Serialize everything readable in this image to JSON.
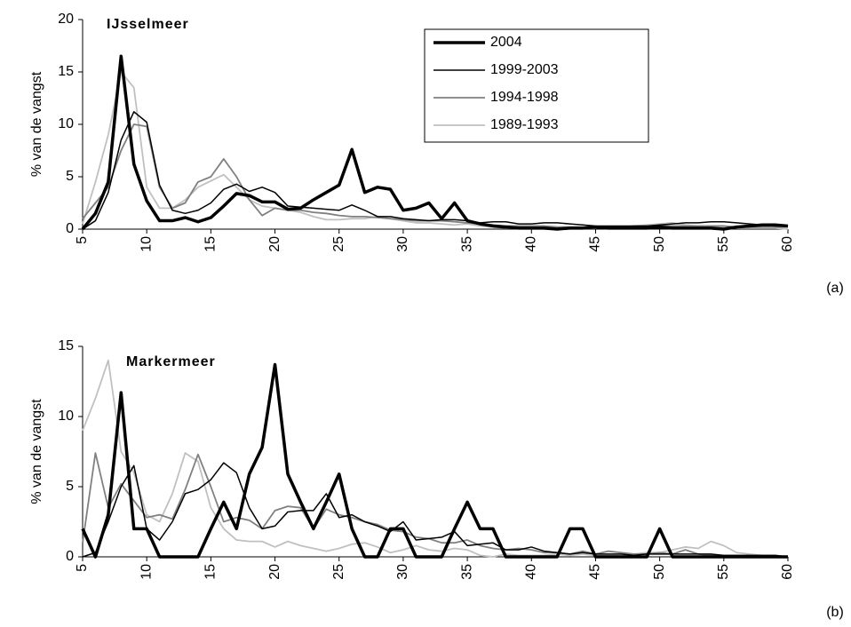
{
  "chart_data": [
    {
      "type": "line",
      "title": "IJsselmeer",
      "label": "(a)",
      "y_label": "% van de vangst",
      "x": [
        5,
        6,
        7,
        8,
        9,
        10,
        11,
        12,
        13,
        14,
        15,
        16,
        17,
        18,
        19,
        20,
        21,
        22,
        23,
        24,
        25,
        26,
        27,
        28,
        29,
        30,
        31,
        32,
        33,
        34,
        35,
        36,
        37,
        38,
        39,
        40,
        41,
        42,
        43,
        44,
        45,
        46,
        47,
        48,
        49,
        50,
        51,
        52,
        53,
        54,
        55,
        56,
        57,
        58,
        59,
        60
      ],
      "xlim": [
        5,
        60
      ],
      "xticks": [
        5,
        10,
        15,
        20,
        25,
        30,
        35,
        40,
        45,
        50,
        55,
        60
      ],
      "ylim": [
        0,
        20
      ],
      "yticks": [
        0,
        5,
        10,
        15,
        20
      ],
      "legend": "upper right",
      "series": [
        {
          "name": "2004",
          "color": "#000000",
          "width": 3.5,
          "values": [
            0,
            1.5,
            4.5,
            16.5,
            6.2,
            2.7,
            0.8,
            0.8,
            1.1,
            0.7,
            1.1,
            2.2,
            3.4,
            3.2,
            2.6,
            2.6,
            1.9,
            2.0,
            2.8,
            3.5,
            4.2,
            7.6,
            3.5,
            4.0,
            3.8,
            1.8,
            2.0,
            2.5,
            1.0,
            2.5,
            0.8,
            0.5,
            0.3,
            0.2,
            0.1,
            0.1,
            0.1,
            0,
            0.1,
            0.1,
            0.2,
            0.1,
            0.1,
            0.1,
            0.1,
            0.2,
            0.1,
            0.1,
            0.1,
            0.1,
            0,
            0.2,
            0.3,
            0.4,
            0.4,
            0.3
          ]
        },
        {
          "name": "1999-2003",
          "color": "#000000",
          "width": 1.5,
          "values": [
            0,
            0.8,
            3.5,
            8.5,
            11.2,
            10.2,
            4.2,
            1.8,
            1.5,
            1.8,
            2.5,
            3.8,
            4.3,
            3.6,
            4.0,
            3.5,
            2.2,
            2.1,
            2.0,
            1.9,
            1.8,
            2.3,
            1.8,
            1.2,
            1.2,
            1.0,
            0.9,
            0.8,
            0.9,
            0.9,
            0.8,
            0.6,
            0.7,
            0.7,
            0.5,
            0.5,
            0.6,
            0.6,
            0.5,
            0.4,
            0.3,
            0.3,
            0.3,
            0.3,
            0.3,
            0.4,
            0.5,
            0.6,
            0.6,
            0.7,
            0.7,
            0.6,
            0.5,
            0.4,
            0.3,
            0.3
          ]
        },
        {
          "name": "1994-1998",
          "color": "#808080",
          "width": 1.8,
          "values": [
            1.0,
            2.5,
            4.0,
            7.5,
            10.0,
            9.8,
            4.0,
            2.0,
            2.5,
            4.5,
            5.0,
            6.7,
            5.0,
            2.8,
            1.3,
            2.0,
            1.8,
            1.8,
            1.6,
            1.5,
            1.3,
            1.2,
            1.2,
            1.1,
            1.0,
            0.9,
            0.8,
            0.8,
            0.8,
            0.7,
            0.6,
            0.5,
            0.4,
            0.3,
            0.3,
            0.3,
            0.3,
            0.2,
            0.2,
            0.2,
            0.2,
            0.2,
            0.2,
            0.3,
            0.3,
            0.3,
            0.3,
            0.3,
            0.3,
            0.3,
            0.3,
            0.2,
            0.2,
            0.2,
            0.2,
            0.2
          ]
        },
        {
          "name": "1989-1993",
          "color": "#c0c0c0",
          "width": 1.8,
          "values": [
            0.5,
            4.5,
            9.0,
            15.0,
            13.5,
            4.0,
            2.0,
            2.0,
            2.8,
            4.0,
            4.6,
            5.2,
            4.0,
            2.8,
            2.2,
            2.0,
            1.8,
            1.6,
            1.2,
            0.9,
            0.9,
            1.0,
            1.0,
            1.2,
            1.0,
            0.8,
            0.6,
            0.6,
            0.5,
            0.4,
            0.5,
            0.3,
            0.2,
            0.1,
            0.1,
            0.1,
            0.1,
            0.1,
            0.1,
            0.1,
            0.1,
            0.2,
            0.2,
            0.3,
            0.4,
            0.5,
            0.6,
            0.4,
            0.3,
            0.2,
            0.2,
            0.1,
            0.1,
            0.1,
            0.1,
            0
          ]
        }
      ]
    },
    {
      "type": "line",
      "title": "Markermeer",
      "label": "(b)",
      "y_label": "% van de vangst",
      "x": [
        5,
        6,
        7,
        8,
        9,
        10,
        11,
        12,
        13,
        14,
        15,
        16,
        17,
        18,
        19,
        20,
        21,
        22,
        23,
        24,
        25,
        26,
        27,
        28,
        29,
        30,
        31,
        32,
        33,
        34,
        35,
        36,
        37,
        38,
        39,
        40,
        41,
        42,
        43,
        44,
        45,
        46,
        47,
        48,
        49,
        50,
        51,
        52,
        53,
        54,
        55,
        56,
        57,
        58,
        59,
        60
      ],
      "xlim": [
        5,
        60
      ],
      "xticks": [
        5,
        10,
        15,
        20,
        25,
        30,
        35,
        40,
        45,
        50,
        55,
        60
      ],
      "ylim": [
        0,
        15
      ],
      "yticks": [
        0,
        5,
        10,
        15
      ],
      "series": [
        {
          "color": "#000000",
          "width": 3.5,
          "values": [
            2,
            0,
            3,
            11.7,
            2,
            2,
            0,
            0,
            0,
            0,
            2,
            3.9,
            2,
            5.9,
            7.8,
            13.7,
            5.9,
            3.9,
            2,
            3.9,
            5.9,
            2,
            0,
            0,
            2,
            2,
            0,
            0,
            0,
            2,
            3.9,
            2,
            2,
            0,
            0,
            0,
            0,
            0,
            2,
            2,
            0,
            0,
            0,
            0,
            0,
            2,
            0,
            0,
            0,
            0,
            0,
            0,
            0,
            0,
            0,
            0
          ]
        },
        {
          "color": "#000000",
          "width": 1.5,
          "values": [
            0,
            0.3,
            2.5,
            5.0,
            6.5,
            2.0,
            1.2,
            2.5,
            4.5,
            4.8,
            5.5,
            6.7,
            6.0,
            3.5,
            2.0,
            2.2,
            3.2,
            3.3,
            3.3,
            4.5,
            2.8,
            3.0,
            2.5,
            2.2,
            1.8,
            2.5,
            1.2,
            1.3,
            1.4,
            1.8,
            0.8,
            0.9,
            1.0,
            0.5,
            0.5,
            0.7,
            0.4,
            0.3,
            0.2,
            0.3,
            0.2,
            0.2,
            0.2,
            0.1,
            0.2,
            0.2,
            0.2,
            0.2,
            0.2,
            0.2,
            0.1,
            0.1,
            0.1,
            0.1,
            0.1,
            0
          ]
        },
        {
          "color": "#808080",
          "width": 1.8,
          "values": [
            1.0,
            7.4,
            3.5,
            5.2,
            4.0,
            2.8,
            3.0,
            2.7,
            4.8,
            7.3,
            5.0,
            2.5,
            2.8,
            2.6,
            2.0,
            3.3,
            3.6,
            3.5,
            2.0,
            3.4,
            3.0,
            2.8,
            2.5,
            2.3,
            1.9,
            1.8,
            1.4,
            1.3,
            1.0,
            1.0,
            1.2,
            0.8,
            0.6,
            0.5,
            0.6,
            0.5,
            0.3,
            0.3,
            0.2,
            0.4,
            0.2,
            0.4,
            0.3,
            0.2,
            0.2,
            0.3,
            0.2,
            0.5,
            0.2,
            0.1,
            0.1,
            0.1,
            0.1,
            0.1,
            0.1,
            0
          ]
        },
        {
          "color": "#c0c0c0",
          "width": 1.8,
          "values": [
            9.0,
            11.3,
            14.0,
            7.5,
            6.0,
            3.0,
            2.5,
            4.5,
            7.4,
            6.8,
            3.5,
            2.0,
            1.2,
            1.1,
            1.1,
            0.7,
            1.1,
            0.8,
            0.6,
            0.4,
            0.6,
            0.9,
            1.0,
            0.7,
            0.3,
            0.5,
            0.8,
            0.5,
            0.4,
            0.6,
            0.5,
            0.1,
            0,
            0.2,
            0.1,
            0.1,
            0.1,
            0.2,
            0.1,
            0.2,
            0.1,
            0.1,
            0.1,
            0.2,
            0.3,
            0.3,
            0.5,
            0.7,
            0.6,
            1.1,
            0.8,
            0.3,
            0.2,
            0.1,
            0.1,
            0
          ]
        }
      ]
    }
  ]
}
